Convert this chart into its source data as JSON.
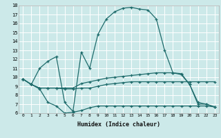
{
  "xlabel": "Humidex (Indice chaleur)",
  "xlim": [
    -0.5,
    23.5
  ],
  "ylim": [
    6,
    18
  ],
  "yticks": [
    6,
    7,
    8,
    9,
    10,
    11,
    12,
    13,
    14,
    15,
    16,
    17,
    18
  ],
  "xticks": [
    0,
    1,
    2,
    3,
    4,
    5,
    6,
    7,
    8,
    9,
    10,
    11,
    12,
    13,
    14,
    15,
    16,
    17,
    18,
    19,
    20,
    21,
    22,
    23
  ],
  "bg_color": "#cce9e9",
  "line_color": "#1e6b6b",
  "grid_color": "#ffffff",
  "curves": [
    {
      "x": [
        0,
        1,
        2,
        3,
        4,
        5,
        6,
        7,
        8,
        9,
        10,
        11,
        12,
        13,
        14,
        15,
        16,
        17,
        18,
        19,
        20,
        21,
        22,
        23
      ],
      "y": [
        9.8,
        9.2,
        8.8,
        8.8,
        8.8,
        8.7,
        8.7,
        8.8,
        8.8,
        9.0,
        9.2,
        9.3,
        9.4,
        9.5,
        9.5,
        9.5,
        9.5,
        9.5,
        9.5,
        9.5,
        9.5,
        9.5,
        9.5,
        9.5
      ]
    },
    {
      "x": [
        0,
        1,
        2,
        3,
        4,
        5,
        6,
        7,
        8,
        9,
        10,
        11,
        12,
        13,
        14,
        15,
        16,
        17,
        18,
        19,
        20,
        21,
        22,
        23
      ],
      "y": [
        9.8,
        9.2,
        8.7,
        7.2,
        6.8,
        6.0,
        6.1,
        6.3,
        6.6,
        6.8,
        6.8,
        6.8,
        6.8,
        6.8,
        6.8,
        6.8,
        6.8,
        6.8,
        6.8,
        6.8,
        6.8,
        6.8,
        6.8,
        6.7
      ]
    },
    {
      "x": [
        0,
        1,
        2,
        3,
        4,
        5,
        6,
        7,
        8,
        9,
        10,
        11,
        12,
        13,
        14,
        15,
        16,
        17,
        18,
        19,
        20,
        21,
        22,
        23
      ],
      "y": [
        9.8,
        9.2,
        8.8,
        8.8,
        8.8,
        8.8,
        8.8,
        9.3,
        9.5,
        9.7,
        9.9,
        10.0,
        10.1,
        10.2,
        10.3,
        10.4,
        10.5,
        10.5,
        10.5,
        10.4,
        9.2,
        7.2,
        7.0,
        6.7
      ]
    },
    {
      "x": [
        0,
        1,
        2,
        3,
        4,
        5,
        6,
        7,
        8,
        9,
        10,
        11,
        12,
        13,
        14,
        15,
        16,
        17,
        18,
        19,
        20,
        21,
        22,
        23
      ],
      "y": [
        9.8,
        9.2,
        11.0,
        11.8,
        12.3,
        7.2,
        6.2,
        12.8,
        11.0,
        14.8,
        16.5,
        17.3,
        17.7,
        17.8,
        17.6,
        17.5,
        16.5,
        13.0,
        10.5,
        10.3,
        9.2,
        7.0,
        7.0,
        6.7
      ]
    }
  ]
}
